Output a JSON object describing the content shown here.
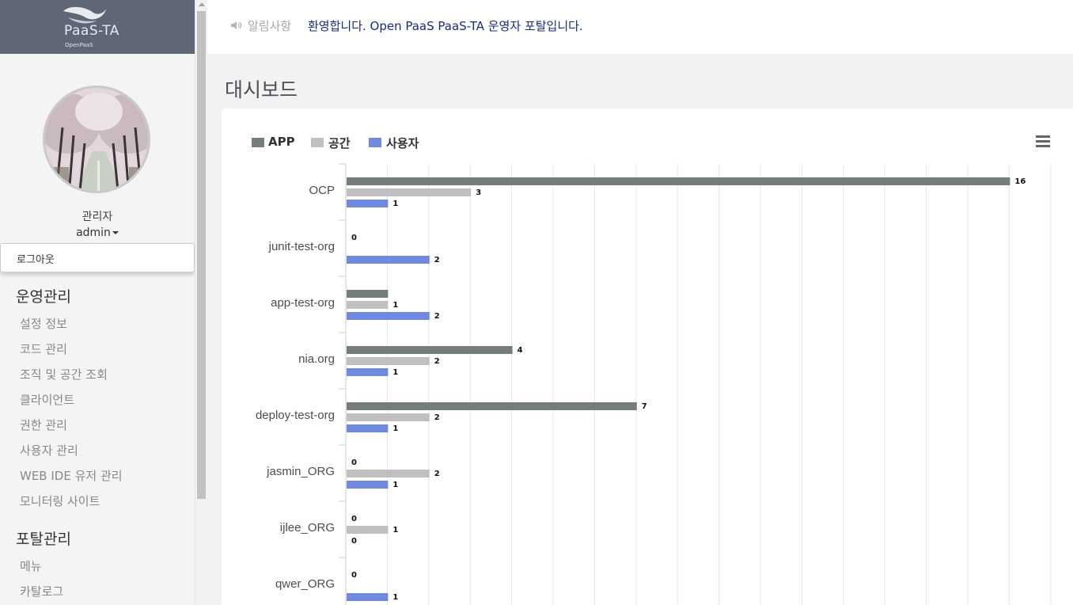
{
  "brand": {
    "name": "PaaS-TA",
    "sub": "OpenPaaS"
  },
  "user": {
    "role": "관리자",
    "name": "admin"
  },
  "dropdown": {
    "logout": "로그아웃"
  },
  "menus": [
    {
      "title": "운영관리",
      "items": [
        "설정 정보",
        "코드 관리",
        "조직 및 공간 조회",
        "클라이언트",
        "권한 관리",
        "사용자 관리",
        "WEB IDE 유저 관리",
        "모니터링 사이트"
      ]
    },
    {
      "title": "포탈관리",
      "items": [
        "메뉴",
        "카탈로그"
      ]
    }
  ],
  "notice": {
    "label": "알림사항",
    "text": "환영합니다. Open PaaS PaaS-TA 운영자 포탈입니다."
  },
  "page": {
    "title": "대시보드"
  },
  "icons": {
    "speaker": "speaker-icon",
    "menu": "hamburger-menu-icon",
    "caret": "caret-down-icon"
  },
  "colors": {
    "app": "#757d7b",
    "space": "#bfbfbf",
    "user": "#6f89de",
    "logo_bar": "#5f6776"
  },
  "chart_data": {
    "type": "bar",
    "orientation": "horizontal",
    "categories": [
      "OCP",
      "junit-test-org",
      "app-test-org",
      "nia.org",
      "deploy-test-org",
      "jasmin_ORG",
      "ijlee_ORG",
      "qwer_ORG"
    ],
    "series": [
      {
        "name": "APP",
        "values": [
          16,
          0,
          1,
          4,
          7,
          0,
          0,
          0
        ],
        "labels": [
          "16",
          "0",
          "",
          "4",
          "7",
          "0",
          "0",
          "0"
        ]
      },
      {
        "name": "공간",
        "values": [
          3,
          0,
          1,
          2,
          2,
          2,
          1,
          0
        ],
        "labels": [
          "3",
          "",
          "1",
          "2",
          "2",
          "2",
          "1",
          ""
        ]
      },
      {
        "name": "사용자",
        "values": [
          1,
          2,
          2,
          1,
          1,
          1,
          0,
          1
        ],
        "labels": [
          "1",
          "2",
          "2",
          "1",
          "1",
          "1",
          "0",
          "1"
        ]
      }
    ],
    "xlim": [
      0,
      17
    ],
    "grid": true,
    "legend": "top-left"
  }
}
